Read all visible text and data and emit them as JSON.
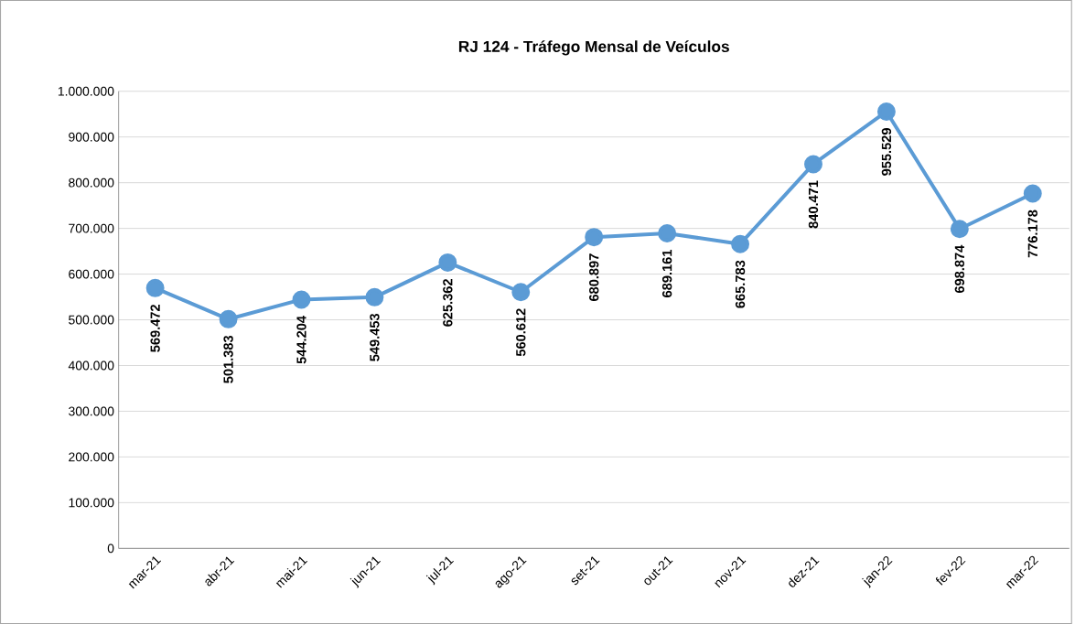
{
  "chart_data": {
    "type": "line",
    "title": "RJ 124 - Tráfego Mensal de Veículos",
    "categories": [
      "mar-21",
      "abr-21",
      "mai-21",
      "jun-21",
      "jul-21",
      "ago-21",
      "set-21",
      "out-21",
      "nov-21",
      "dez-21",
      "jan-22",
      "fev-22",
      "mar-22"
    ],
    "series": [
      {
        "color": "#5b9bd5",
        "values": [
          569472,
          501383,
          544204,
          549453,
          625362,
          560612,
          680897,
          689161,
          665783,
          840471,
          955529,
          698874,
          776178
        ],
        "value_labels": [
          "569.472",
          "501.383",
          "544.204",
          "549.453",
          "625.362",
          "560.612",
          "680.897",
          "689.161",
          "665.783",
          "840.471",
          "955.529",
          "698.874",
          "776.178"
        ]
      }
    ],
    "ylim": [
      0,
      1000000
    ],
    "yticks": [
      0,
      {
        "value": 100000,
        "label": "100.000"
      },
      {
        "value": 200000,
        "label": "200.000"
      },
      {
        "value": 300000,
        "label": "300.000"
      },
      {
        "value": 400000,
        "label": "400.000"
      },
      {
        "value": 500000,
        "label": "500.000"
      },
      {
        "value": 600000,
        "label": "600.000"
      },
      {
        "value": 700000,
        "label": "700.000"
      },
      {
        "value": 800000,
        "label": "800.000"
      },
      {
        "value": 900000,
        "label": "900.000"
      },
      {
        "value": 1000000,
        "label": "1.000.000"
      }
    ],
    "grid": "y",
    "marker": "circle",
    "line_style": "solid"
  }
}
